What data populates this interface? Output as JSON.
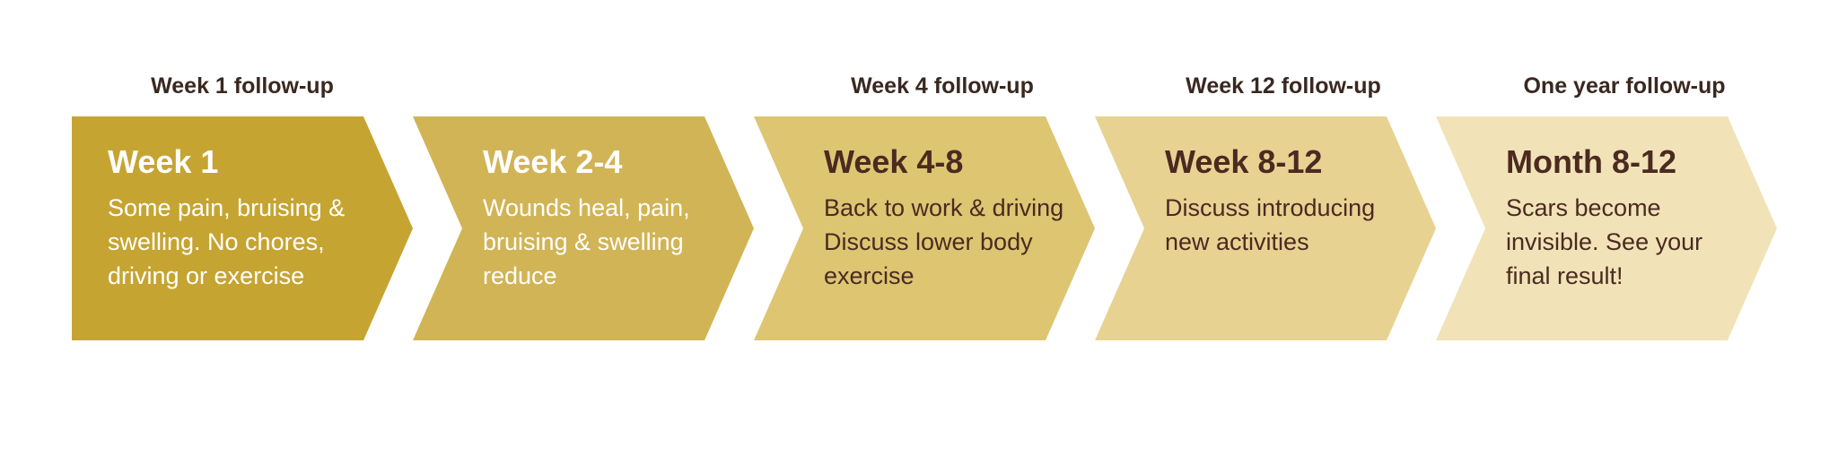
{
  "timeline": {
    "type": "chevron-process",
    "background_color": "#ffffff",
    "label_color": "#3a2820",
    "label_fontsize": 25,
    "label_fontweight": 700,
    "title_fontsize": 36,
    "title_fontweight": 700,
    "desc_fontsize": 27,
    "chevron_height": 250,
    "notch_depth": 55,
    "stages": [
      {
        "label": "Week 1 follow-up",
        "title": "Week 1",
        "desc": "Some pain, bruising & swelling. No chores, driving or exercise",
        "fill": "#c6a431",
        "text_color": "#ffffff",
        "first": true
      },
      {
        "label": "",
        "title": "Week 2-4",
        "desc": "Wounds heal, pain, bruising & swelling reduce",
        "fill": "#d1b455",
        "text_color": "#ffffff",
        "first": false
      },
      {
        "label": "Week 4 follow-up",
        "title": "Week 4-8",
        "desc": "Back to work & driving Discuss lower body exercise",
        "fill": "#ddc572",
        "text_color": "#4b2a21",
        "first": false
      },
      {
        "label": "Week 12 follow-up",
        "title": "Week 8-12",
        "desc": "Discuss introducing new activities",
        "fill": "#e7d292",
        "text_color": "#4b2a21",
        "first": false
      },
      {
        "label": "One year follow-up",
        "title": "Month 8-12",
        "desc": "Scars become invisible. See your final result!",
        "fill": "#f1e3b7",
        "text_color": "#4b2a21",
        "first": false
      }
    ]
  }
}
